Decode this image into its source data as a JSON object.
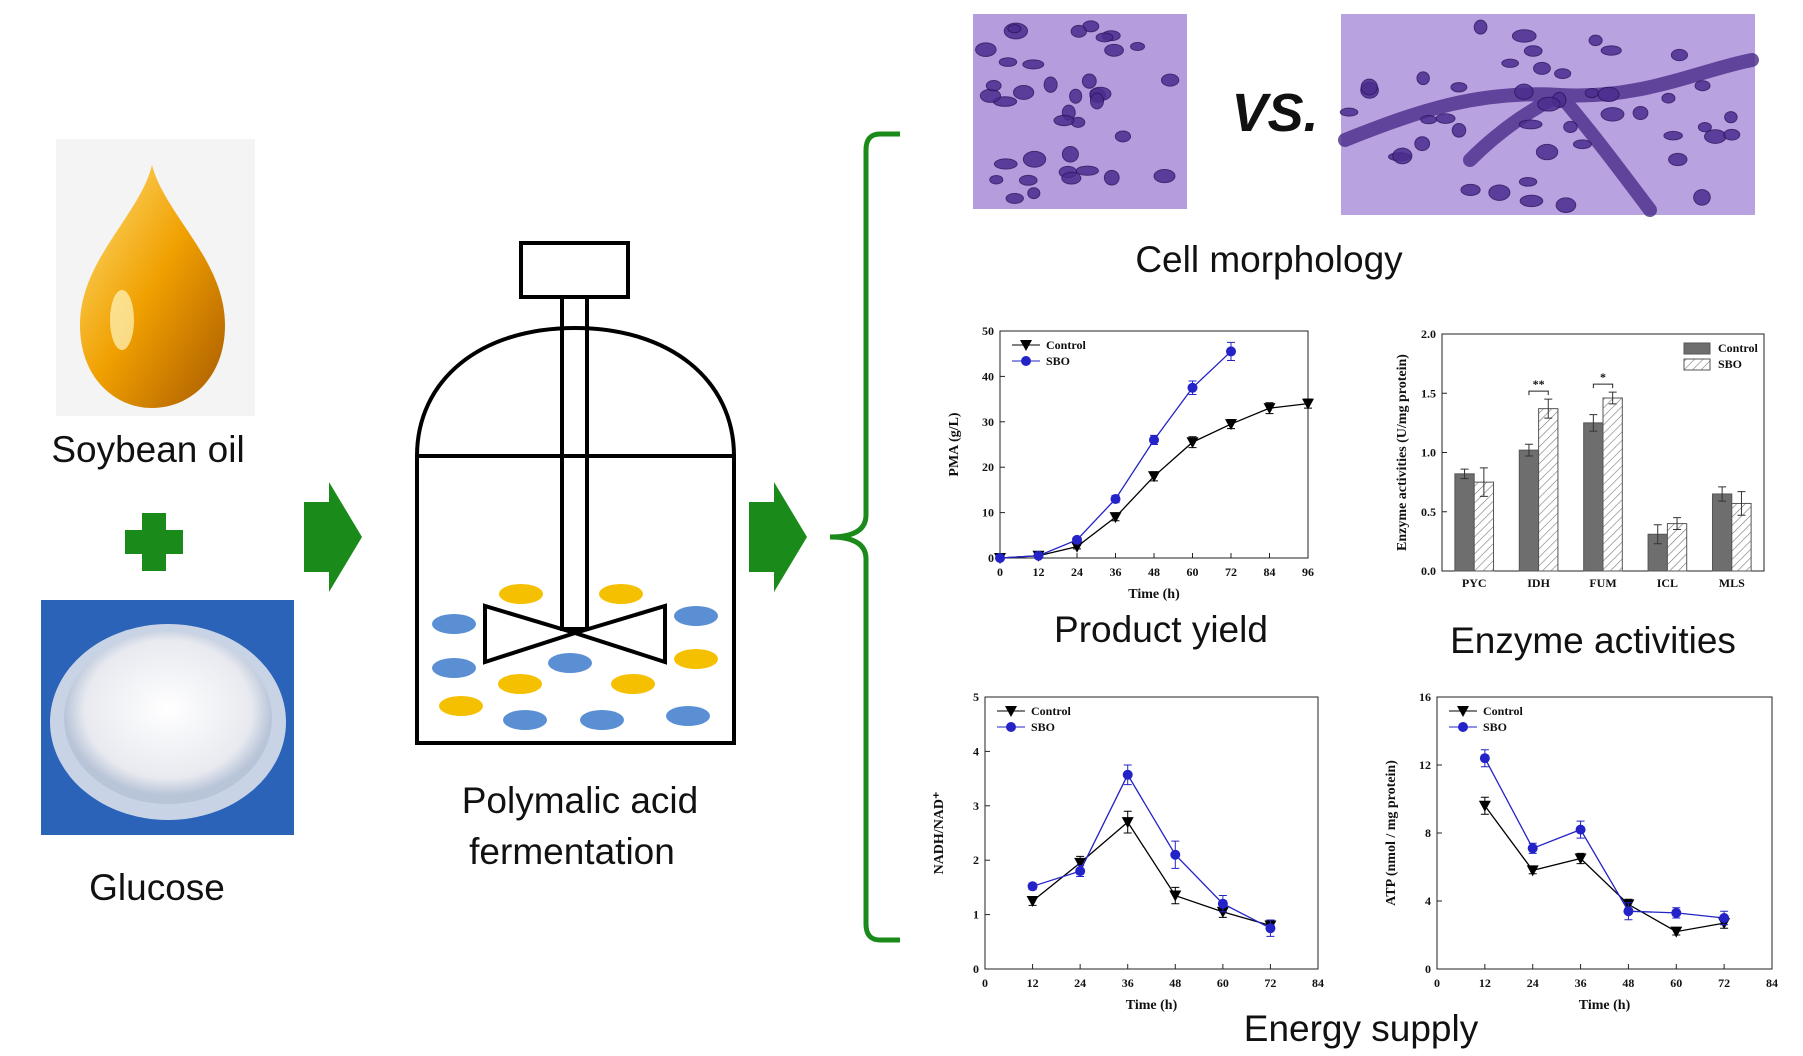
{
  "inputs": [
    {
      "label": "Soybean oil"
    },
    {
      "label": "Glucose"
    }
  ],
  "process": {
    "label_lines": [
      "Polymalic acid",
      "fermentation"
    ]
  },
  "morphology": {
    "separator": "VS.",
    "caption": "Cell morphology"
  },
  "energy_caption": "Energy supply",
  "charts": [
    {
      "caption": "Product yield",
      "chart_data": {
        "type": "line",
        "xlabel": "Time (h)",
        "ylabel": "PMA (g/L)",
        "xlim": [
          0,
          96
        ],
        "xticks": [
          0,
          12,
          24,
          36,
          48,
          60,
          72,
          84,
          96
        ],
        "ylim": [
          0,
          50
        ],
        "yticks": [
          0,
          10,
          20,
          30,
          40,
          50
        ],
        "legend": "upper left",
        "series": [
          {
            "name": "Control",
            "color": "#000000",
            "marker": "triangle-down",
            "x": [
              0,
              12,
              24,
              36,
              48,
              60,
              72,
              84,
              96
            ],
            "values": [
              0,
              0.5,
              2.5,
              9,
              18,
              25.5,
              29.5,
              33,
              34
            ],
            "errors": [
              0.3,
              0.3,
              0.5,
              0.8,
              1,
              1.2,
              1,
              1.2,
              1
            ]
          },
          {
            "name": "SBO",
            "color": "#2323c8",
            "marker": "circle",
            "x": [
              0,
              12,
              24,
              36,
              48,
              60,
              72
            ],
            "values": [
              0,
              0.5,
              4,
              13,
              26,
              37.5,
              45.5
            ],
            "errors": [
              0.3,
              0.3,
              0.5,
              0.8,
              1,
              1.5,
              2
            ]
          }
        ]
      }
    },
    {
      "caption": "Enzyme activities",
      "chart_data": {
        "type": "bar",
        "ylabel": "Enzyme activities (U/mg protein)",
        "categories": [
          "PYC",
          "IDH",
          "FUM",
          "ICL",
          "MLS"
        ],
        "ylim": [
          0,
          2
        ],
        "yticks": [
          {
            "value": 0,
            "label": "0.0"
          },
          0.5,
          {
            "value": 1,
            "label": "1.0"
          },
          1.5,
          {
            "value": 2,
            "label": "2.0"
          }
        ],
        "legend": "upper right",
        "significance": [
          null,
          "**",
          "*",
          null,
          null
        ],
        "series": [
          {
            "name": "Control",
            "color": "#6e6e6e",
            "hatch": false,
            "values": [
              0.82,
              1.02,
              1.25,
              0.31,
              0.65
            ],
            "errors": [
              0.04,
              0.05,
              0.07,
              0.08,
              0.06
            ]
          },
          {
            "name": "SBO",
            "color": "#777777",
            "hatch": true,
            "values": [
              0.75,
              1.37,
              1.46,
              0.4,
              0.57
            ],
            "errors": [
              0.12,
              0.08,
              0.05,
              0.05,
              0.1
            ]
          }
        ]
      }
    },
    {
      "caption": null,
      "chart_data": {
        "type": "line",
        "xlabel": "Time (h)",
        "ylabel": "NADH/NAD⁺",
        "xlim": [
          0,
          84
        ],
        "xticks": [
          0,
          12,
          24,
          36,
          48,
          60,
          72,
          84
        ],
        "x": [
          12,
          24,
          36,
          48,
          60,
          72
        ],
        "ylim": [
          0,
          5
        ],
        "yticks": [
          0,
          1,
          2,
          3,
          4,
          5
        ],
        "legend": "upper left",
        "series": [
          {
            "name": "Control",
            "color": "#000000",
            "marker": "triangle-down",
            "values": [
              1.25,
              1.95,
              2.7,
              1.35,
              1.05,
              0.8
            ],
            "errors": [
              0.08,
              0.12,
              0.2,
              0.15,
              0.1,
              0.1
            ]
          },
          {
            "name": "SBO",
            "color": "#2323c8",
            "marker": "circle",
            "values": [
              1.52,
              1.8,
              3.57,
              2.1,
              1.2,
              0.75
            ],
            "errors": [
              0.06,
              0.1,
              0.18,
              0.25,
              0.15,
              0.15
            ]
          }
        ]
      }
    },
    {
      "caption": null,
      "chart_data": {
        "type": "line",
        "xlabel": "Time (h)",
        "ylabel": "ATP (nmol / mg protein)",
        "xlim": [
          0,
          84
        ],
        "xticks": [
          0,
          12,
          24,
          36,
          48,
          60,
          72,
          84
        ],
        "x": [
          12,
          24,
          36,
          48,
          60,
          72
        ],
        "ylim": [
          0,
          16
        ],
        "yticks": [
          0,
          4,
          8,
          12,
          16
        ],
        "legend": "upper left",
        "series": [
          {
            "name": "Control",
            "color": "#000000",
            "marker": "triangle-down",
            "values": [
              9.6,
              5.8,
              6.5,
              3.8,
              2.2,
              2.7
            ],
            "errors": [
              0.5,
              0.2,
              0.3,
              0.3,
              0.2,
              0.3
            ]
          },
          {
            "name": "SBO",
            "color": "#2323c8",
            "marker": "circle",
            "values": [
              12.4,
              7.1,
              8.2,
              3.4,
              3.3,
              3.0
            ],
            "errors": [
              0.5,
              0.3,
              0.5,
              0.5,
              0.3,
              0.4
            ]
          }
        ]
      }
    }
  ]
}
